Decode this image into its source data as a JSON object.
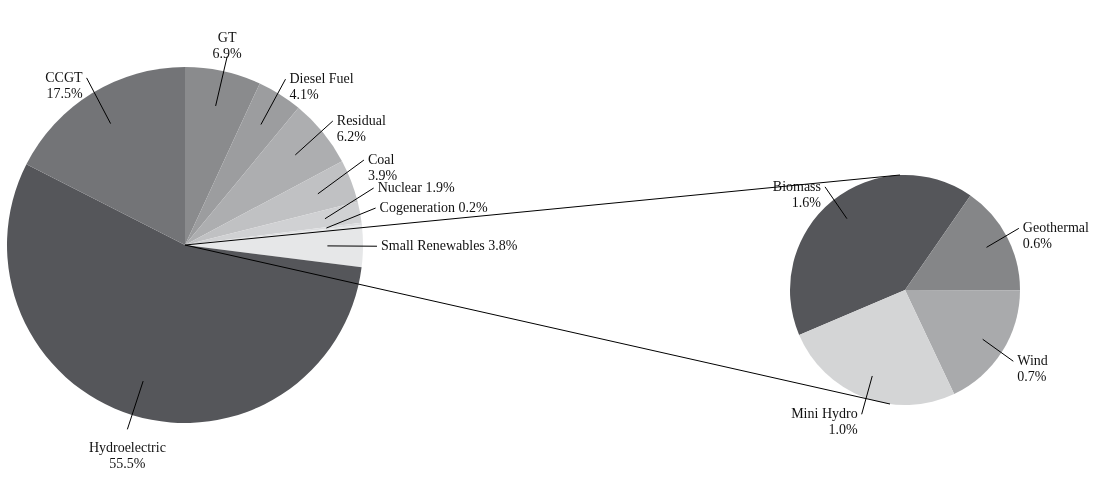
{
  "chart_data": [
    {
      "type": "pie",
      "categories": [
        "GT",
        "Diesel Fuel",
        "Residual",
        "Coal",
        "Nuclear",
        "Cogeneration",
        "Small Renewables",
        "Hydroelectric",
        "CCGT"
      ],
      "values": [
        6.9,
        4.1,
        6.2,
        3.9,
        1.9,
        0.2,
        3.8,
        55.5,
        17.5
      ],
      "colors": [
        "#8a8b8d",
        "#9c9d9f",
        "#adaeb0",
        "#c0c1c3",
        "#d0d1d3",
        "#dcdddf",
        "#e6e7e8",
        "#55565a",
        "#737477"
      ],
      "value_labels": [
        "6.9%",
        "4.1%",
        "6.2%",
        "3.9%",
        "1.9%",
        "0.2%",
        "3.8%",
        "55.5%",
        "17.5%"
      ]
    },
    {
      "type": "pie",
      "categories": [
        "Biomass",
        "Geothermal",
        "Wind",
        "Mini Hydro"
      ],
      "values": [
        1.6,
        0.6,
        0.7,
        1.0
      ],
      "colors": [
        "#55565a",
        "#858688",
        "#a9aaac",
        "#d4d5d6"
      ],
      "value_labels": [
        "1.6%",
        "0.6%",
        "0.7%",
        "1.0%"
      ]
    }
  ]
}
